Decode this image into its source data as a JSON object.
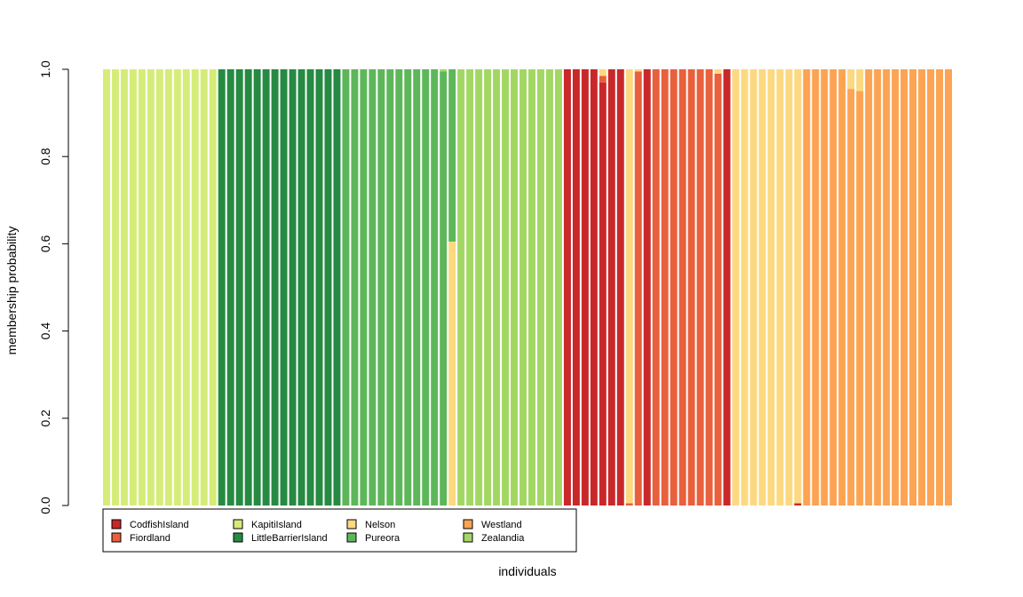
{
  "chart_data": {
    "type": "bar",
    "stacked": true,
    "xlabel": "individuals",
    "ylabel": "membership probability",
    "ylim": [
      0,
      1
    ],
    "yticks": [
      "0.0",
      "0.2",
      "0.4",
      "0.6",
      "0.8",
      "1.0"
    ],
    "grid": false,
    "legend_position": "bottom-left",
    "legend": [
      {
        "name": "CodfishIsland",
        "color": "#c9282a"
      },
      {
        "name": "Fiordland",
        "color": "#e8603c"
      },
      {
        "name": "KapitiIsland",
        "color": "#d6ec79"
      },
      {
        "name": "LittleBarrierIsland",
        "color": "#268a43"
      },
      {
        "name": "Nelson",
        "color": "#fcd980"
      },
      {
        "name": "Pureora",
        "color": "#5db75a"
      },
      {
        "name": "Westland",
        "color": "#fca453"
      },
      {
        "name": "Zealandia",
        "color": "#a3d764"
      }
    ],
    "individuals": [
      {
        "segments": [
          [
            "KapitiIsland",
            1
          ]
        ]
      },
      {
        "segments": [
          [
            "KapitiIsland",
            1
          ]
        ]
      },
      {
        "segments": [
          [
            "KapitiIsland",
            1
          ]
        ]
      },
      {
        "segments": [
          [
            "KapitiIsland",
            1
          ]
        ]
      },
      {
        "segments": [
          [
            "KapitiIsland",
            1
          ]
        ]
      },
      {
        "segments": [
          [
            "KapitiIsland",
            1
          ]
        ]
      },
      {
        "segments": [
          [
            "KapitiIsland",
            1
          ]
        ]
      },
      {
        "segments": [
          [
            "KapitiIsland",
            1
          ]
        ]
      },
      {
        "segments": [
          [
            "KapitiIsland",
            1
          ]
        ]
      },
      {
        "segments": [
          [
            "KapitiIsland",
            1
          ]
        ]
      },
      {
        "segments": [
          [
            "KapitiIsland",
            1
          ]
        ]
      },
      {
        "segments": [
          [
            "KapitiIsland",
            1
          ]
        ]
      },
      {
        "segments": [
          [
            "KapitiIsland",
            1
          ]
        ]
      },
      {
        "segments": [
          [
            "LittleBarrierIsland",
            1
          ]
        ]
      },
      {
        "segments": [
          [
            "LittleBarrierIsland",
            1
          ]
        ]
      },
      {
        "segments": [
          [
            "LittleBarrierIsland",
            1
          ]
        ]
      },
      {
        "segments": [
          [
            "LittleBarrierIsland",
            1
          ]
        ]
      },
      {
        "segments": [
          [
            "LittleBarrierIsland",
            1
          ]
        ]
      },
      {
        "segments": [
          [
            "LittleBarrierIsland",
            1
          ]
        ]
      },
      {
        "segments": [
          [
            "LittleBarrierIsland",
            1
          ]
        ]
      },
      {
        "segments": [
          [
            "LittleBarrierIsland",
            1
          ]
        ]
      },
      {
        "segments": [
          [
            "LittleBarrierIsland",
            1
          ]
        ]
      },
      {
        "segments": [
          [
            "LittleBarrierIsland",
            1
          ]
        ]
      },
      {
        "segments": [
          [
            "LittleBarrierIsland",
            1
          ]
        ]
      },
      {
        "segments": [
          [
            "LittleBarrierIsland",
            1
          ]
        ]
      },
      {
        "segments": [
          [
            "LittleBarrierIsland",
            1
          ]
        ]
      },
      {
        "segments": [
          [
            "LittleBarrierIsland",
            1
          ]
        ]
      },
      {
        "segments": [
          [
            "Pureora",
            1
          ]
        ]
      },
      {
        "segments": [
          [
            "Pureora",
            1
          ]
        ]
      },
      {
        "segments": [
          [
            "Pureora",
            1
          ]
        ]
      },
      {
        "segments": [
          [
            "Pureora",
            1
          ]
        ]
      },
      {
        "segments": [
          [
            "Pureora",
            1
          ]
        ]
      },
      {
        "segments": [
          [
            "Pureora",
            1
          ]
        ]
      },
      {
        "segments": [
          [
            "Pureora",
            1
          ]
        ]
      },
      {
        "segments": [
          [
            "Pureora",
            1
          ]
        ]
      },
      {
        "segments": [
          [
            "Pureora",
            1
          ]
        ]
      },
      {
        "segments": [
          [
            "Pureora",
            1
          ]
        ]
      },
      {
        "segments": [
          [
            "Pureora",
            1
          ]
        ]
      },
      {
        "segments": [
          [
            "Pureora",
            0.995
          ],
          [
            "Zealandia",
            0.005
          ]
        ]
      },
      {
        "segments": [
          [
            "Nelson",
            0.605
          ],
          [
            "Pureora",
            0.395
          ]
        ]
      },
      {
        "segments": [
          [
            "Zealandia",
            1
          ]
        ]
      },
      {
        "segments": [
          [
            "Zealandia",
            1
          ]
        ]
      },
      {
        "segments": [
          [
            "Zealandia",
            1
          ]
        ]
      },
      {
        "segments": [
          [
            "Zealandia",
            1
          ]
        ]
      },
      {
        "segments": [
          [
            "Zealandia",
            1
          ]
        ]
      },
      {
        "segments": [
          [
            "Zealandia",
            1
          ]
        ]
      },
      {
        "segments": [
          [
            "Zealandia",
            1
          ]
        ]
      },
      {
        "segments": [
          [
            "Zealandia",
            1
          ]
        ]
      },
      {
        "segments": [
          [
            "Zealandia",
            1
          ]
        ]
      },
      {
        "segments": [
          [
            "Zealandia",
            1
          ]
        ]
      },
      {
        "segments": [
          [
            "Zealandia",
            1
          ]
        ]
      },
      {
        "segments": [
          [
            "Zealandia",
            1
          ]
        ]
      },
      {
        "segments": [
          [
            "CodfishIsland",
            1
          ]
        ]
      },
      {
        "segments": [
          [
            "CodfishIsland",
            1
          ]
        ]
      },
      {
        "segments": [
          [
            "CodfishIsland",
            1
          ]
        ]
      },
      {
        "segments": [
          [
            "CodfishIsland",
            1
          ]
        ]
      },
      {
        "segments": [
          [
            "CodfishIsland",
            0.97
          ],
          [
            "Fiordland",
            0.015
          ],
          [
            "Nelson",
            0.015
          ]
        ]
      },
      {
        "segments": [
          [
            "CodfishIsland",
            1
          ]
        ]
      },
      {
        "segments": [
          [
            "CodfishIsland",
            1
          ]
        ]
      },
      {
        "segments": [
          [
            "Fiordland",
            0.005
          ],
          [
            "Nelson",
            0.995
          ]
        ]
      },
      {
        "segments": [
          [
            "Fiordland",
            0.995
          ],
          [
            "Nelson",
            0.005
          ]
        ]
      },
      {
        "segments": [
          [
            "CodfishIsland",
            1
          ]
        ]
      },
      {
        "segments": [
          [
            "Fiordland",
            1
          ]
        ]
      },
      {
        "segments": [
          [
            "Fiordland",
            1
          ]
        ]
      },
      {
        "segments": [
          [
            "Fiordland",
            1
          ]
        ]
      },
      {
        "segments": [
          [
            "Fiordland",
            1
          ]
        ]
      },
      {
        "segments": [
          [
            "Fiordland",
            1
          ]
        ]
      },
      {
        "segments": [
          [
            "Fiordland",
            1
          ]
        ]
      },
      {
        "segments": [
          [
            "Fiordland",
            1
          ]
        ]
      },
      {
        "segments": [
          [
            "Fiordland",
            0.99
          ],
          [
            "Nelson",
            0.01
          ]
        ]
      },
      {
        "segments": [
          [
            "CodfishIsland",
            1
          ]
        ]
      },
      {
        "segments": [
          [
            "Nelson",
            1
          ]
        ]
      },
      {
        "segments": [
          [
            "Nelson",
            1
          ]
        ]
      },
      {
        "segments": [
          [
            "Nelson",
            1
          ]
        ]
      },
      {
        "segments": [
          [
            "Nelson",
            1
          ]
        ]
      },
      {
        "segments": [
          [
            "Nelson",
            1
          ]
        ]
      },
      {
        "segments": [
          [
            "Nelson",
            1
          ]
        ]
      },
      {
        "segments": [
          [
            "Nelson",
            1
          ]
        ]
      },
      {
        "segments": [
          [
            "CodfishIsland",
            0.005
          ],
          [
            "Nelson",
            0.995
          ]
        ]
      },
      {
        "segments": [
          [
            "Westland",
            1
          ]
        ]
      },
      {
        "segments": [
          [
            "Westland",
            1
          ]
        ]
      },
      {
        "segments": [
          [
            "Westland",
            1
          ]
        ]
      },
      {
        "segments": [
          [
            "Westland",
            1
          ]
        ]
      },
      {
        "segments": [
          [
            "Westland",
            1
          ]
        ]
      },
      {
        "segments": [
          [
            "Westland",
            0.955
          ],
          [
            "Nelson",
            0.045
          ]
        ]
      },
      {
        "segments": [
          [
            "Westland",
            0.95
          ],
          [
            "Nelson",
            0.05
          ]
        ]
      },
      {
        "segments": [
          [
            "Westland",
            1
          ]
        ]
      },
      {
        "segments": [
          [
            "Westland",
            1
          ]
        ]
      },
      {
        "segments": [
          [
            "Westland",
            1
          ]
        ]
      },
      {
        "segments": [
          [
            "Westland",
            1
          ]
        ]
      },
      {
        "segments": [
          [
            "Westland",
            1
          ]
        ]
      },
      {
        "segments": [
          [
            "Westland",
            1
          ]
        ]
      },
      {
        "segments": [
          [
            "Westland",
            1
          ]
        ]
      },
      {
        "segments": [
          [
            "Westland",
            1
          ]
        ]
      },
      {
        "segments": [
          [
            "Westland",
            1
          ]
        ]
      },
      {
        "segments": [
          [
            "Westland",
            1
          ]
        ]
      }
    ]
  }
}
